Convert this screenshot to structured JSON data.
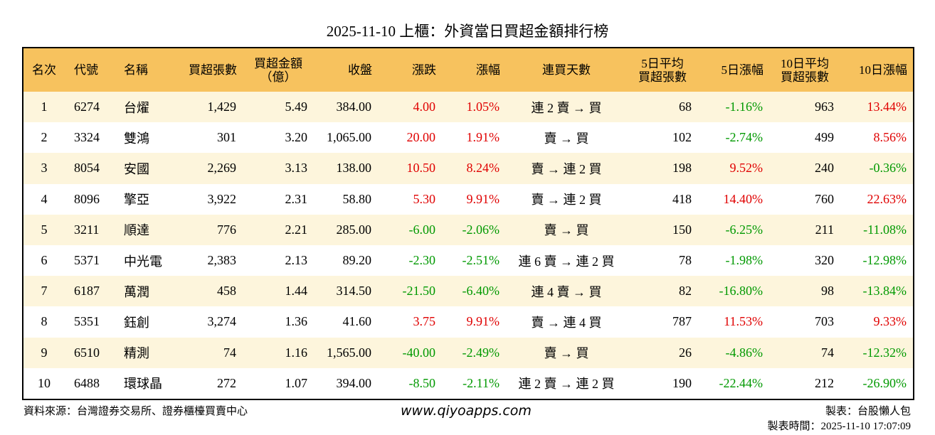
{
  "title": "2025-11-10 上櫃：外資當日買超金額排行榜",
  "table": {
    "header": [
      [
        "名次"
      ],
      [
        "代號"
      ],
      [
        "名稱"
      ],
      [
        "買超張數"
      ],
      [
        "買超金額",
        "（億）"
      ],
      [
        "收盤"
      ],
      [
        "漲跌"
      ],
      [
        "漲幅"
      ],
      [
        "連買天數"
      ],
      [
        "5日平均",
        "買超張數"
      ],
      [
        "5日漲幅"
      ],
      [
        "10日平均",
        "買超張數"
      ],
      [
        "10日漲幅"
      ]
    ],
    "rows": [
      [
        "1",
        "6274",
        "台燿",
        "1,429",
        "5.49",
        "384.00",
        "4.00",
        "1.05%",
        "連 2 賣 → 買",
        "68",
        "-1.16%",
        "963",
        "13.44%"
      ],
      [
        "2",
        "3324",
        "雙鴻",
        "301",
        "3.20",
        "1,065.00",
        "20.00",
        "1.91%",
        "賣 → 買",
        "102",
        "-2.74%",
        "499",
        "8.56%"
      ],
      [
        "3",
        "8054",
        "安國",
        "2,269",
        "3.13",
        "138.00",
        "10.50",
        "8.24%",
        "賣 → 連 2 買",
        "198",
        "9.52%",
        "240",
        "-0.36%"
      ],
      [
        "4",
        "8096",
        "擎亞",
        "3,922",
        "2.31",
        "58.80",
        "5.30",
        "9.91%",
        "賣 → 連 2 買",
        "418",
        "14.40%",
        "760",
        "22.63%"
      ],
      [
        "5",
        "3211",
        "順達",
        "776",
        "2.21",
        "285.00",
        "-6.00",
        "-2.06%",
        "賣 → 買",
        "150",
        "-6.25%",
        "211",
        "-11.08%"
      ],
      [
        "6",
        "5371",
        "中光電",
        "2,383",
        "2.13",
        "89.20",
        "-2.30",
        "-2.51%",
        "連 6 賣 → 連 2 買",
        "78",
        "-1.98%",
        "320",
        "-12.98%"
      ],
      [
        "7",
        "6187",
        "萬潤",
        "458",
        "1.44",
        "314.50",
        "-21.50",
        "-6.40%",
        "連 4 賣 → 買",
        "82",
        "-16.80%",
        "98",
        "-13.84%"
      ],
      [
        "8",
        "5351",
        "鈺創",
        "3,274",
        "1.36",
        "41.60",
        "3.75",
        "9.91%",
        "賣 → 連 4 買",
        "787",
        "11.53%",
        "703",
        "9.33%"
      ],
      [
        "9",
        "6510",
        "精測",
        "74",
        "1.16",
        "1,565.00",
        "-40.00",
        "-2.49%",
        "賣 → 買",
        "26",
        "-4.86%",
        "74",
        "-12.32%"
      ],
      [
        "10",
        "6488",
        "環球晶",
        "272",
        "1.07",
        "394.00",
        "-8.50",
        "-2.11%",
        "連 2 賣 → 連 2 買",
        "190",
        "-22.44%",
        "212",
        "-26.90%"
      ]
    ],
    "colored_columns": [
      6,
      7,
      10,
      12
    ],
    "positive_color": "#e00000",
    "negative_color": "#009900",
    "header_color": "#f7c25e",
    "stripe_color": "#fdf5dc"
  },
  "footer": {
    "source": "資料來源：台灣證券交易所、證券櫃檯買賣中心",
    "site": "www.qiyoapps.com",
    "maker": "製表：台股懶人包",
    "time": "製表時間：2025-11-10 17:07:09"
  }
}
